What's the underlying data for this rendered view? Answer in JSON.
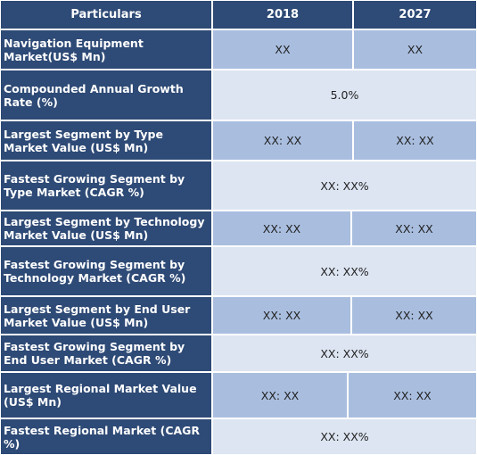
{
  "header": {
    "particulars": "Particulars",
    "col_2018": "2018",
    "col_2027": "2027"
  },
  "rows": [
    {
      "label": "Navigation Equipment Market(US$ Mn)",
      "v2018": "XX",
      "v2027": "XX"
    },
    {
      "label": "Compounded Annual Growth Rate (%)",
      "value": "5.0%"
    },
    {
      "label": "Largest Segment by Type Market Value (US$ Mn)",
      "v2018": "XX: XX",
      "v2027": "XX: XX"
    },
    {
      "label": "Fastest Growing Segment by Type Market (CAGR %)",
      "value": "XX: XX%"
    },
    {
      "label": "Largest Segment by Technology Market Value (US$ Mn)",
      "v2018": "XX: XX",
      "v2027": "XX: XX"
    },
    {
      "label": "Fastest Growing Segment by Technology Market (CAGR %)",
      "value": "XX: XX%"
    },
    {
      "label": "Largest Segment by End User Market Value (US$ Mn)",
      "v2018": "XX: XX",
      "v2027": "XX: XX"
    },
    {
      "label": "Fastest Growing Segment by End User Market (CAGR %)",
      "value": "XX: XX%"
    },
    {
      "label": "Largest Regional Market Value (US$ Mn)",
      "v2018": "XX: XX",
      "v2027": "XX: XX"
    },
    {
      "label": "Fastest Regional Market (CAGR %)",
      "value": "XX: XX%"
    }
  ]
}
